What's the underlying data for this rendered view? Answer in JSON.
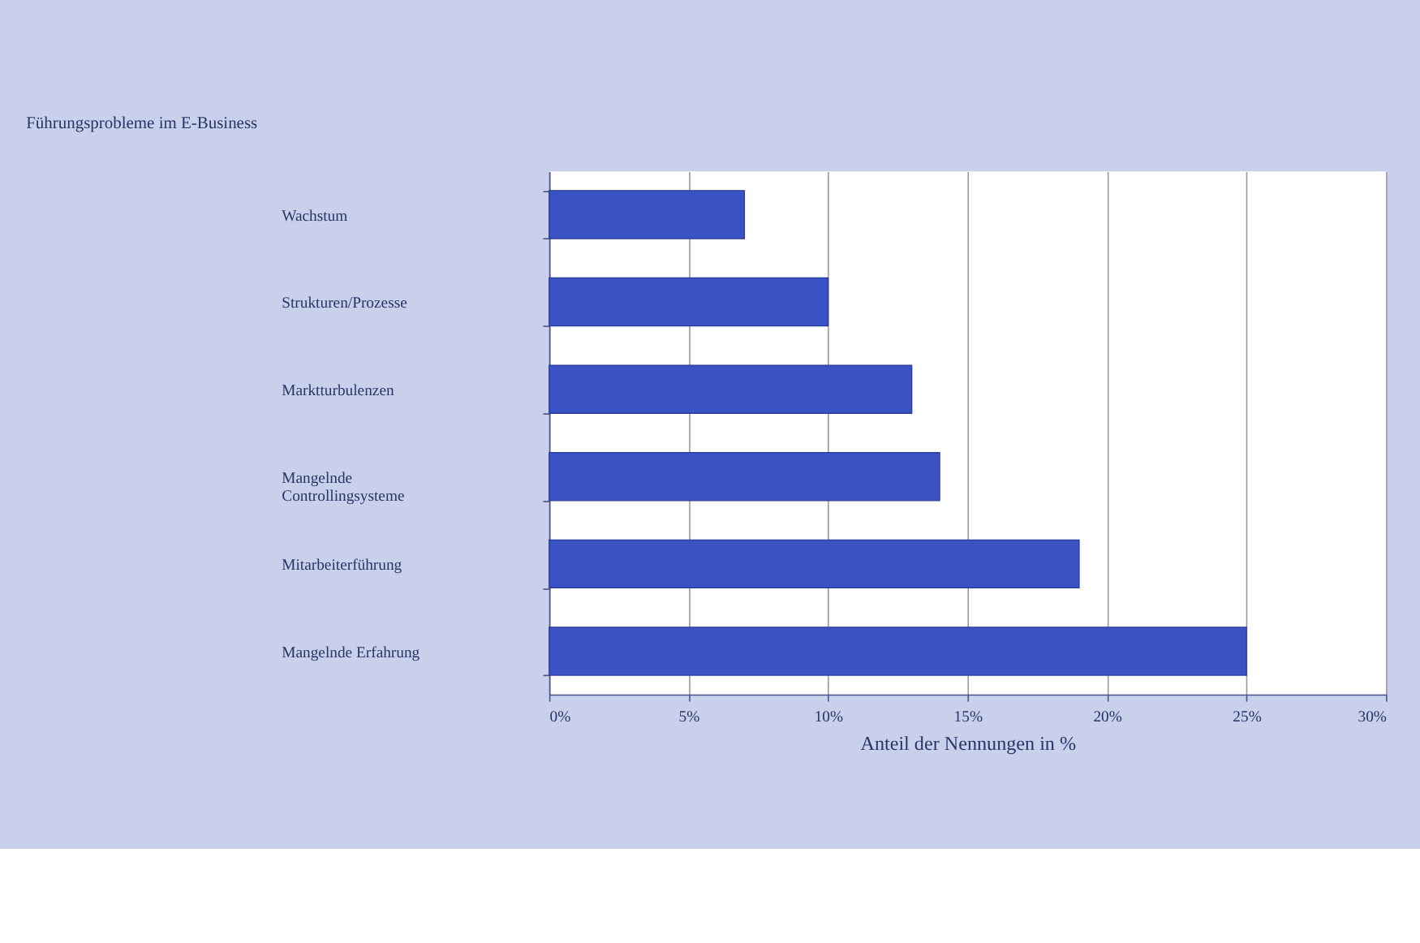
{
  "chart_data": {
    "type": "bar",
    "orientation": "horizontal",
    "title": "Führungsprobleme im E-Business",
    "xlabel": "Anteil der Nennungen in %",
    "categories": [
      "Wachstum",
      "Strukturen/Prozesse",
      "Marktturbulenzen",
      "Mangelnde\nControllingsysteme",
      "Mitarbeiterführung",
      "Mangelnde Erfahrung"
    ],
    "values": [
      7,
      10,
      13,
      14,
      19,
      25
    ],
    "color": "#3b52c4",
    "xlim": [
      0,
      30
    ],
    "xticks": [
      {
        "value": 0,
        "label": "0%"
      },
      {
        "value": 5,
        "label": "5%"
      },
      {
        "value": 10,
        "label": "10%"
      },
      {
        "value": 15,
        "label": "15%"
      },
      {
        "value": 20,
        "label": "20%"
      },
      {
        "value": 25,
        "label": "25%"
      },
      {
        "value": 30,
        "label": "30%"
      }
    ],
    "grid": "x"
  }
}
